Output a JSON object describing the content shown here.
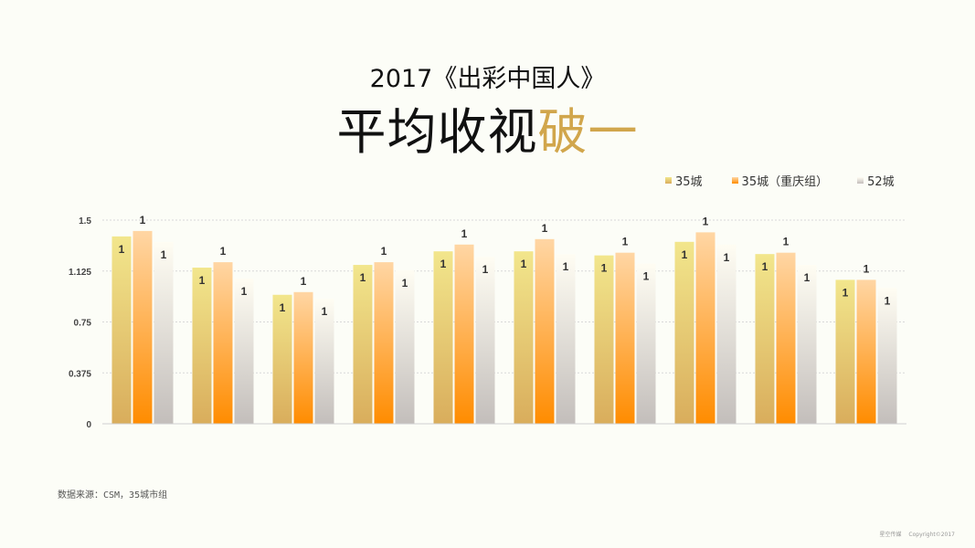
{
  "header": {
    "subtitle": "2017《出彩中国人》",
    "title_main": "平均收视",
    "title_accent": "破一"
  },
  "chart_data": {
    "type": "bar",
    "categories": [
      "",
      "",
      "",
      "",
      "",
      "",
      "",
      "",
      "",
      ""
    ],
    "series": [
      {
        "name": "35城",
        "values": [
          1.38,
          1.15,
          0.95,
          1.17,
          1.27,
          1.27,
          1.24,
          1.34,
          1.25,
          1.06
        ],
        "labels": [
          "1",
          "1",
          "1",
          "1",
          "1",
          "1",
          "1",
          "1",
          "1",
          "1"
        ]
      },
      {
        "name": "35城（重庆组）",
        "values": [
          1.42,
          1.19,
          0.97,
          1.19,
          1.32,
          1.36,
          1.26,
          1.41,
          1.26,
          1.06
        ],
        "labels": [
          "1",
          "1",
          "1",
          "1",
          "1",
          "1",
          "1",
          "1",
          "1",
          "1"
        ]
      },
      {
        "name": "52城",
        "values": [
          1.34,
          1.07,
          0.92,
          1.13,
          1.23,
          1.25,
          1.18,
          1.32,
          1.17,
          1.0
        ],
        "labels": [
          "1",
          "1",
          "1",
          "1",
          "1",
          "1",
          "1",
          "1",
          "1",
          "1"
        ]
      }
    ],
    "yticks": [
      "0",
      "0.375",
      "0.75",
      "1.125",
      "1.5"
    ],
    "ylim": [
      0,
      1.5
    ],
    "grid": true,
    "legend_position": "top-right",
    "colors": {
      "s1_top": "#f2e68c",
      "s1_bottom": "#d9ad5c",
      "s2_top": "#ffd6a4",
      "s2_bottom": "#ff8c00",
      "s3_top": "#fffdf3",
      "s3_bottom": "#c3bebb"
    }
  },
  "source_note": "数据来源：CSM，35城市组",
  "footer": {
    "brand": "星空传媒",
    "copyright": "Copyright©2017"
  }
}
